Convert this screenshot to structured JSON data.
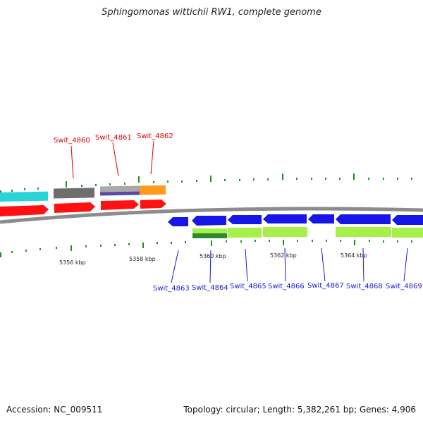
{
  "title": "Sphingomonas wittichii RW1, complete genome",
  "accession": "Accession: NC_009511",
  "summary": "Topology: circular; Length: 5,382,261 bp; Genes: 4,906",
  "kbp_labels": [
    "5356 kbp",
    "5358 kbp",
    "5360 kbp",
    "5362 kbp",
    "5364 kbp"
  ],
  "top_gene_labels": [
    "Swit_4860",
    "Swit_4861",
    "Swit_4862"
  ],
  "bottom_gene_labels": [
    "Swit_4863",
    "Swit_4864",
    "Swit_4865",
    "Swit_4866",
    "Swit_4867",
    "Swit_4868",
    "Swit_4869"
  ],
  "colors": {
    "backbone": "#8c8c8c",
    "cds_red": "#ff1111",
    "cds_blue": "#1616e8",
    "cyan": "#29d3d8",
    "grey_feature": "#6e6e6e",
    "light_grey_feature": "#a9a9a9",
    "purple_feature": "#5a4aa8",
    "orange_feature": "#ff9a1a",
    "lime_feature": "#a6f04a",
    "dark_green_feature": "#2c8a2c",
    "tick": "#1f8f1f",
    "label_red": "#d40000",
    "label_blue": "#1a1ad6"
  }
}
